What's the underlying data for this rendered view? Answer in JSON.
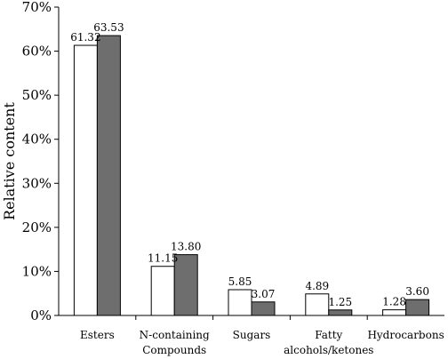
{
  "chart_data": {
    "type": "bar",
    "categories": [
      "Esters",
      "N-containing Compounds",
      "Sugars",
      "Fatty alcohols/ketones",
      "Hydrocarbons"
    ],
    "category_labels": [
      [
        "Esters"
      ],
      [
        "N-containing",
        "Compounds"
      ],
      [
        "Sugars"
      ],
      [
        "Fatty",
        "alcohols/ketones"
      ],
      [
        "Hydrocarbons"
      ]
    ],
    "series": [
      {
        "values": [
          61.32,
          11.15,
          5.85,
          4.89,
          1.28
        ],
        "labels": [
          "61.32",
          "11.15",
          "5.85",
          "4.89",
          "1.28"
        ],
        "color": "#ffffff"
      },
      {
        "values": [
          63.53,
          13.8,
          3.07,
          1.25,
          3.6
        ],
        "labels": [
          "63.53",
          "13.80",
          "3.07",
          "1.25",
          "3.60"
        ],
        "color": "#6e6e6e"
      }
    ],
    "ylabel": "Relative content",
    "ylim": [
      0,
      70
    ],
    "yticks": [
      0,
      10,
      20,
      30,
      40,
      50,
      60,
      70
    ],
    "ytick_labels": [
      "0%",
      "10%",
      "20%",
      "30%",
      "40%",
      "50%",
      "60%",
      "70%"
    ],
    "grid": false,
    "legend": "none"
  }
}
